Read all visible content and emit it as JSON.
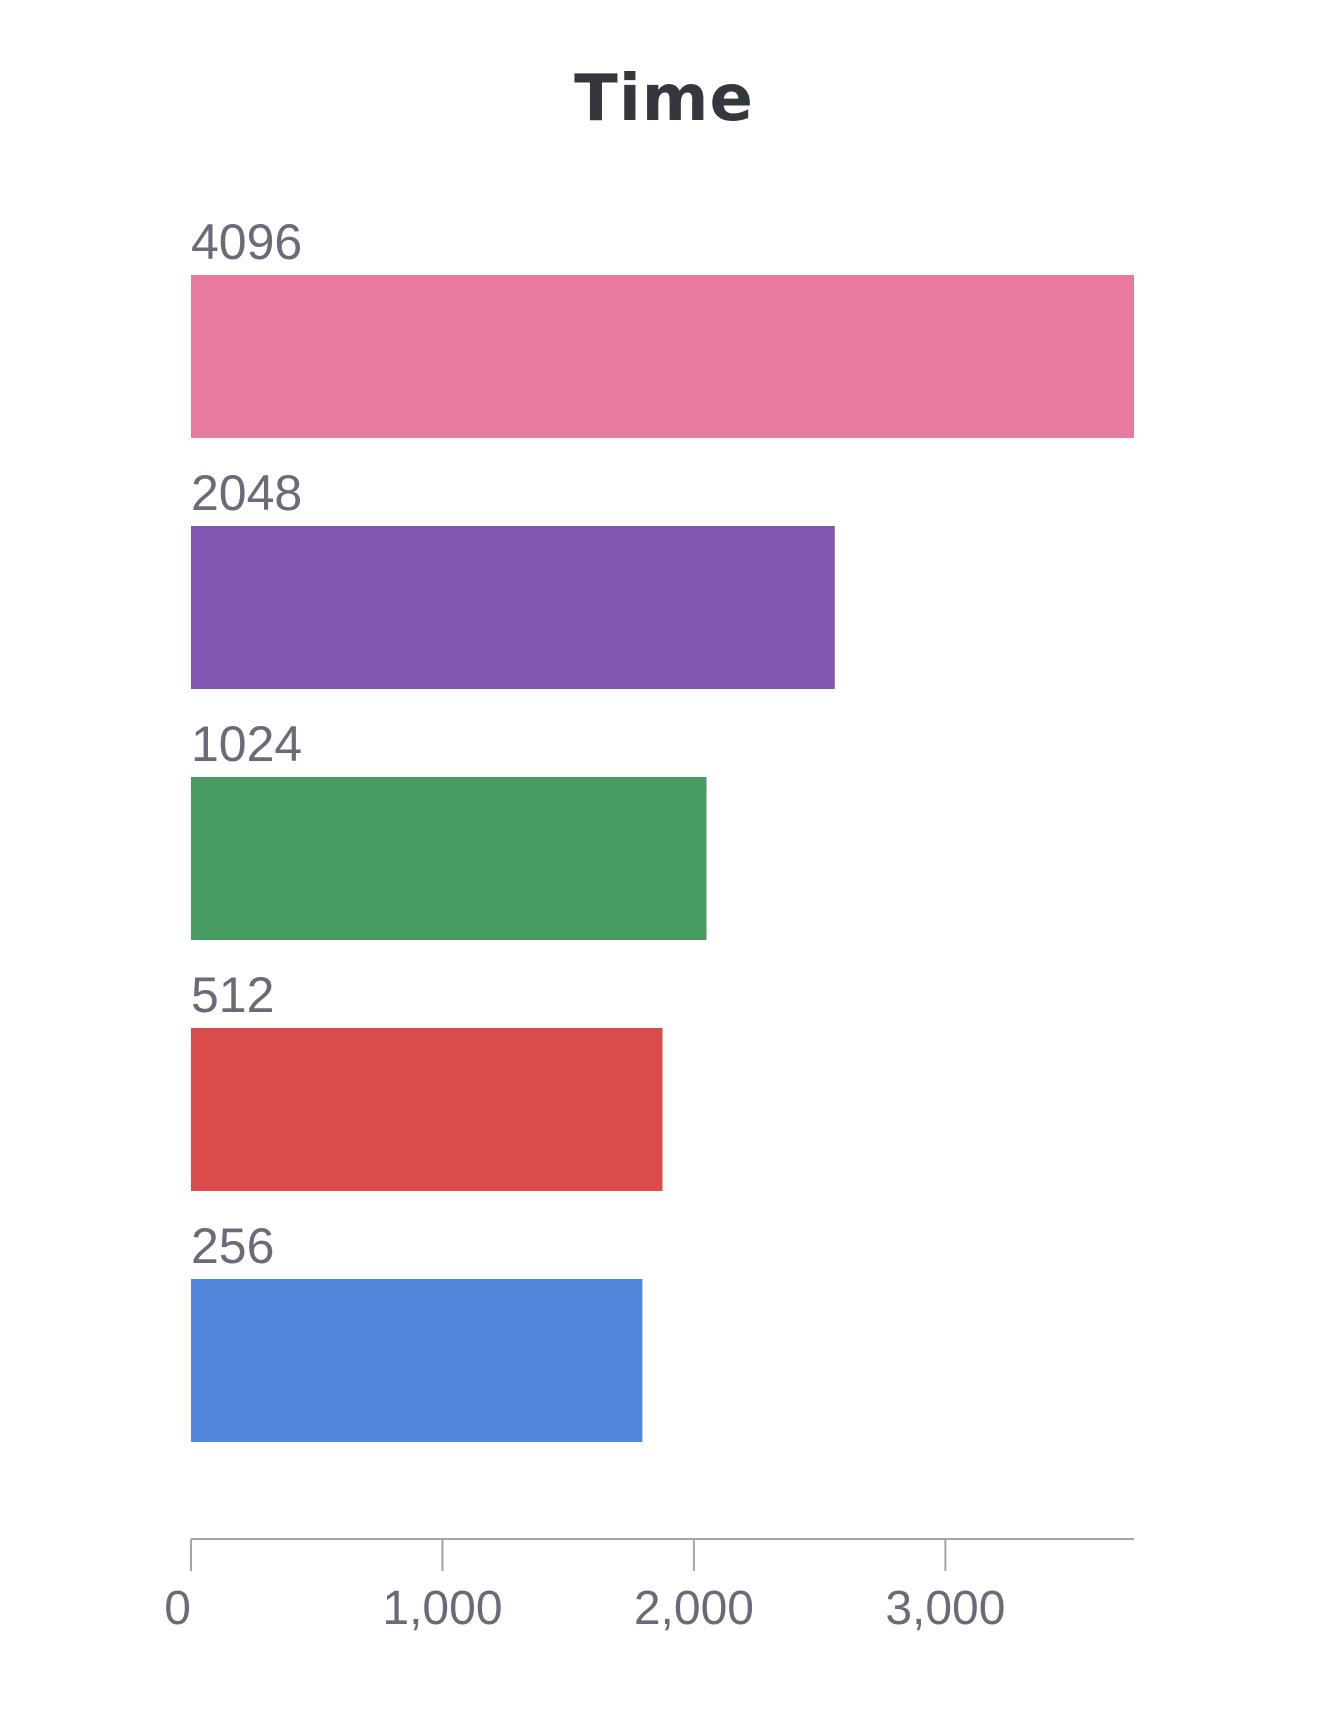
{
  "chart_data": {
    "type": "bar",
    "orientation": "horizontal",
    "title": "Time",
    "xlabel": "",
    "ylabel": "",
    "categories": [
      "4096",
      "2048",
      "1024",
      "512",
      "256"
    ],
    "values": [
      3750,
      2560,
      2050,
      1875,
      1795
    ],
    "colors": [
      "#e87a9e",
      "#7f56b2",
      "#479b60",
      "#da4c4c",
      "#5287dc"
    ],
    "xlim": [
      0,
      3750
    ],
    "xticks": [
      0,
      1000,
      2000,
      3000
    ],
    "xtick_labels": [
      "0",
      "1,000",
      "2,000",
      "3,000"
    ],
    "grid": false,
    "legend": false
  }
}
